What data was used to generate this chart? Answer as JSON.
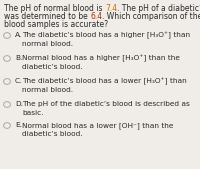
{
  "bg_color": "#f0ede8",
  "title_parts_line1": [
    {
      "text": "The pH of normal blood is ",
      "color": "#2a2a2a"
    },
    {
      "text": "7.4",
      "color": "#c87000"
    },
    {
      "text": ". The pH of a diabetic’s blood",
      "color": "#2a2a2a"
    }
  ],
  "title_parts_line2": [
    {
      "text": "was determined to be ",
      "color": "#2a2a2a"
    },
    {
      "text": "6.4",
      "color": "#b03000"
    },
    {
      "text": ". Which comparison of these two",
      "color": "#2a2a2a"
    }
  ],
  "title_line3": "blood samples is accurate?",
  "options": [
    {
      "letter": "A.",
      "line1": "The diabetic’s blood has a higher [H₃O⁺] than",
      "line2": "normal blood."
    },
    {
      "letter": "B.",
      "line1": "Normal blood has a higher [H₃O⁺] than the",
      "line2": "diabetic’s blood."
    },
    {
      "letter": "C.",
      "line1": "The diabetic’s blood has a lower [H₃O⁺] than",
      "line2": "normal blood."
    },
    {
      "letter": "D.",
      "line1": "The pH of the diabetic’s blood is described as",
      "line2": "basic."
    },
    {
      "letter": "E.",
      "line1": "Normal blood has a lower [OH⁻] than the",
      "line2": "diabetic’s blood."
    }
  ],
  "text_color": "#2a2a2a",
  "circle_color": "#b0a898",
  "font_size_title": 5.5,
  "font_size_option": 5.3
}
